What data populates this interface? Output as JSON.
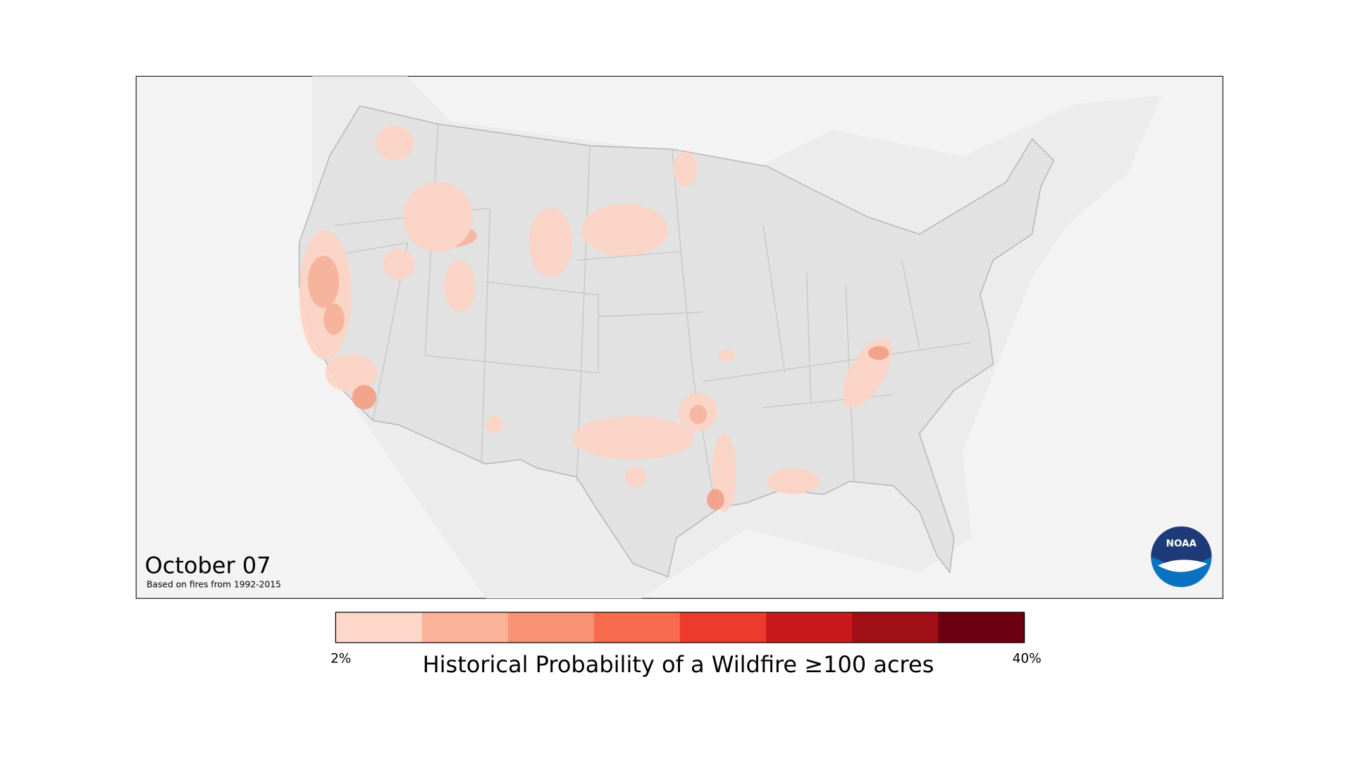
{
  "map": {
    "title": "October 07",
    "subtitle": "Based on fires from 1992-2015",
    "logo": "NOAA"
  },
  "legend": {
    "title": "Historical Probability of a Wildfire ≥100 acres",
    "min_label": "2%",
    "max_label": "40%",
    "colors": [
      "#fdd8ca",
      "#fbb49a",
      "#fa9376",
      "#f76a4e",
      "#ec3a2c",
      "#c9191d",
      "#a10f16",
      "#6b0010"
    ]
  }
}
